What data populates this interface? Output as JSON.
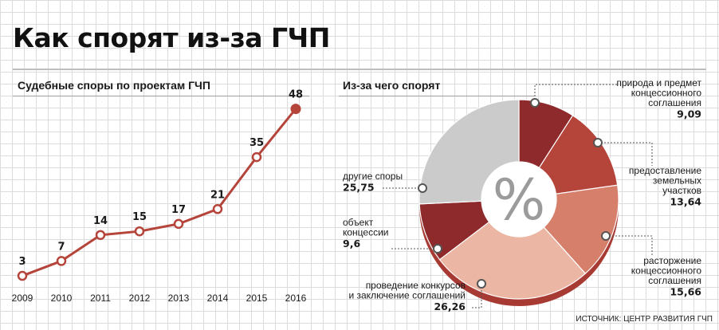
{
  "title": "Как спорят из-за ГЧП",
  "source": "ИСТОЧНИК: ЦЕНТР РАЗВИТИЯ ГЧП",
  "center_symbol": "%",
  "chart_data": [
    {
      "type": "line",
      "title": "Судебные споры по проектам ГЧП",
      "x": [
        "2009",
        "2010",
        "2011",
        "2012",
        "2013",
        "2014",
        "2015",
        "2016"
      ],
      "values": [
        3,
        7,
        14,
        15,
        17,
        21,
        35,
        48
      ],
      "data_labels": [
        "3",
        "7",
        "14",
        "15",
        "17",
        "21",
        "35",
        "48"
      ],
      "ylim": [
        0,
        52
      ],
      "grid": true,
      "color": "#b5443b"
    },
    {
      "type": "pie",
      "title": "Из-за чего спорят",
      "slices": [
        {
          "name": "природа и предмет концессионного соглашения",
          "lines": [
            "природа и предмет",
            "концессионного",
            "соглашения"
          ],
          "value": 9.09,
          "label": "9,09",
          "color": "#8e2a2c"
        },
        {
          "name": "предоставление земельных участков",
          "lines": [
            "предоставление",
            "земельных",
            "участков"
          ],
          "value": 13.64,
          "label": "13,64",
          "color": "#b5443b"
        },
        {
          "name": "расторжение концессионного соглашения",
          "lines": [
            "расторжение",
            "концессионного",
            "соглашения"
          ],
          "value": 15.66,
          "label": "15,66",
          "color": "#d67f6b"
        },
        {
          "name": "проведение конкурсов и заключение соглашений",
          "lines": [
            "проведение конкурсов",
            "и заключение соглашений"
          ],
          "value": 26.26,
          "label": "26,26",
          "color": "#ebb6a3"
        },
        {
          "name": "объект концессии",
          "lines": [
            "объект",
            "концессии"
          ],
          "value": 9.6,
          "label": "9,6",
          "color": "#8e2a2c"
        },
        {
          "name": "другие споры",
          "lines": [
            "другие споры"
          ],
          "value": 25.75,
          "label": "25,75",
          "color": "#cbcbcb"
        }
      ]
    }
  ]
}
